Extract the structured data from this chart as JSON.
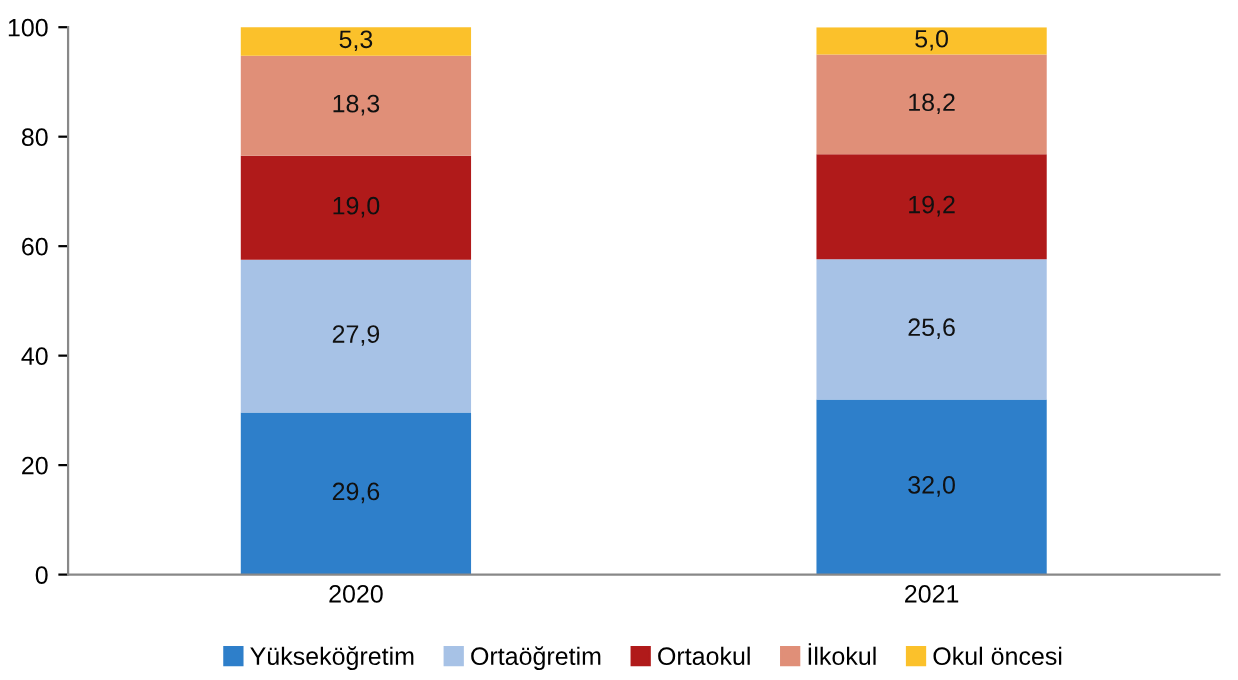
{
  "chart_data": {
    "type": "bar",
    "stacked": true,
    "categories": [
      "2020",
      "2021"
    ],
    "series": [
      {
        "name": "Yükseköğretim",
        "color": "#2e7fca",
        "values": [
          29.6,
          32.0
        ],
        "value_labels": [
          "29,6",
          "32,0"
        ]
      },
      {
        "name": "Ortaöğretim",
        "color": "#a7c2e6",
        "values": [
          27.9,
          25.6
        ],
        "value_labels": [
          "27,9",
          "25,6"
        ]
      },
      {
        "name": "Ortaokul",
        "color": "#b01a1a",
        "values": [
          19.0,
          19.2
        ],
        "value_labels": [
          "19,0",
          "19,2"
        ]
      },
      {
        "name": "İlkokul",
        "color": "#e08f78",
        "values": [
          18.3,
          18.2
        ],
        "value_labels": [
          "18,3",
          "18,2"
        ]
      },
      {
        "name": "Okul öncesi",
        "color": "#fbc12b",
        "values": [
          5.3,
          5.0
        ],
        "value_labels": [
          "5,3",
          "5,0"
        ]
      }
    ],
    "ylim": [
      0,
      100
    ],
    "yticks": [
      0,
      20,
      40,
      60,
      80,
      100
    ],
    "grid": false,
    "legend": "bottom"
  }
}
